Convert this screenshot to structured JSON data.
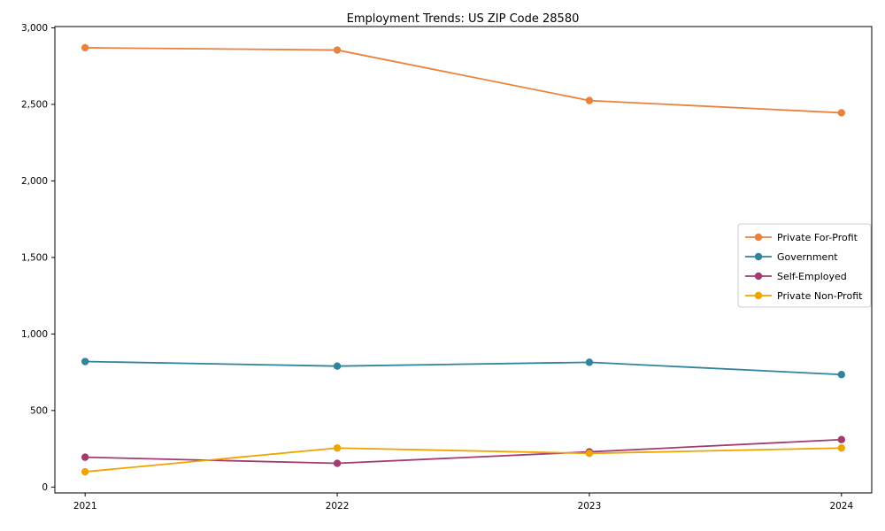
{
  "chart_data": {
    "type": "line",
    "title": "Employment Trends: US ZIP Code 28580",
    "xlabel": "",
    "ylabel": "",
    "categories": [
      "2021",
      "2022",
      "2023",
      "2024"
    ],
    "series": [
      {
        "name": "Private For-Profit",
        "color": "#e8823e",
        "values": [
          2870,
          2855,
          2525,
          2445
        ]
      },
      {
        "name": "Government",
        "color": "#31849b",
        "values": [
          820,
          790,
          815,
          735
        ]
      },
      {
        "name": "Self-Employed",
        "color": "#a23b72",
        "values": [
          195,
          155,
          230,
          310
        ]
      },
      {
        "name": "Private Non-Profit",
        "color": "#efa400",
        "values": [
          100,
          255,
          220,
          255
        ]
      }
    ],
    "ylim": [
      0,
      3000
    ],
    "yticks": [
      0,
      500,
      1000,
      1500,
      2000,
      2500,
      3000
    ],
    "ytick_labels": [
      "0",
      "500",
      "1,000",
      "1,500",
      "2,000",
      "2,500",
      "3,000"
    ],
    "legend": {
      "position": "center-right",
      "entries": [
        "Private For-Profit",
        "Government",
        "Self-Employed",
        "Private Non-Profit"
      ]
    },
    "grid": false,
    "marker": "circle",
    "background": "#ffffff",
    "axis_color": "#000000"
  }
}
